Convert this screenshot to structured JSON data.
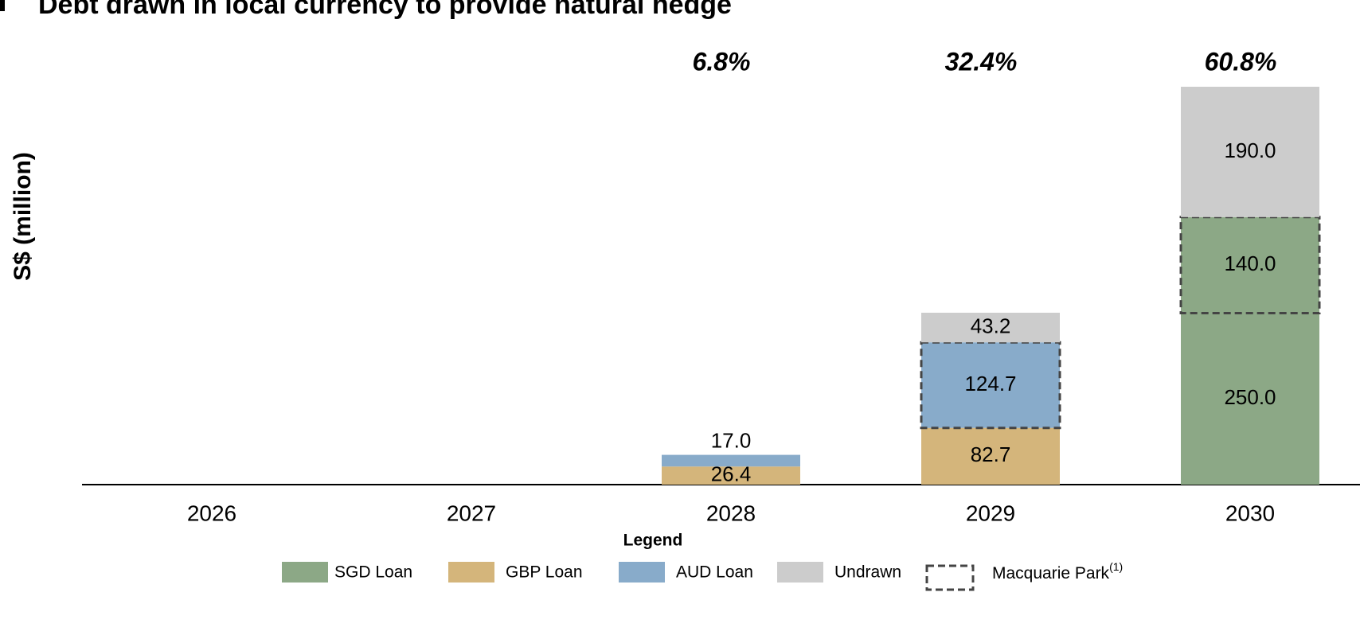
{
  "chart_data": {
    "type": "stacked_bar",
    "title": "Debt drawn in local currency to provide natural hedge",
    "y_label": "S$ (million)",
    "categories": [
      "2026",
      "2027",
      "2028",
      "2029",
      "2030"
    ],
    "bar_annotations": [
      null,
      null,
      "6.8%",
      "32.4%",
      "60.8%"
    ],
    "ylim": [
      0,
      580
    ],
    "series": [
      {
        "name": "SGD Loan",
        "color": "#8ca886",
        "values": [
          null,
          null,
          null,
          null,
          250
        ],
        "value_labels": [
          null,
          null,
          null,
          null,
          "250.0"
        ],
        "dashed": [
          false,
          false,
          false,
          false,
          false
        ]
      },
      {
        "name": "GBP Loan",
        "color": "#d4b57b",
        "values": [
          null,
          null,
          26.4,
          82.7,
          null
        ],
        "value_labels": [
          null,
          null,
          "26.4",
          "82.7",
          null
        ],
        "dashed": [
          false,
          false,
          false,
          false,
          false
        ]
      },
      {
        "name": "AUD Loan",
        "color": "#88abca",
        "values": [
          null,
          null,
          17,
          124.7,
          null
        ],
        "value_labels": [
          null,
          null,
          "17.0",
          "124.7",
          null
        ],
        "dashed": [
          false,
          false,
          false,
          true,
          false
        ]
      },
      {
        "name": "SGD Loan",
        "color": "#8ca886",
        "values": [
          null,
          null,
          null,
          null,
          140
        ],
        "value_labels": [
          null,
          null,
          null,
          null,
          "140.0"
        ],
        "dashed": [
          false,
          false,
          false,
          false,
          true
        ]
      },
      {
        "name": "Undrawn",
        "color": "#cccccc",
        "values": [
          null,
          null,
          null,
          43.2,
          190
        ],
        "value_labels": [
          null,
          null,
          null,
          "43.2",
          "190.0"
        ],
        "dashed": [
          false,
          false,
          false,
          false,
          false
        ]
      }
    ],
    "legend_title": "Legend",
    "outline": {
      "name": "Macquarie Park",
      "note": "(1)"
    }
  }
}
